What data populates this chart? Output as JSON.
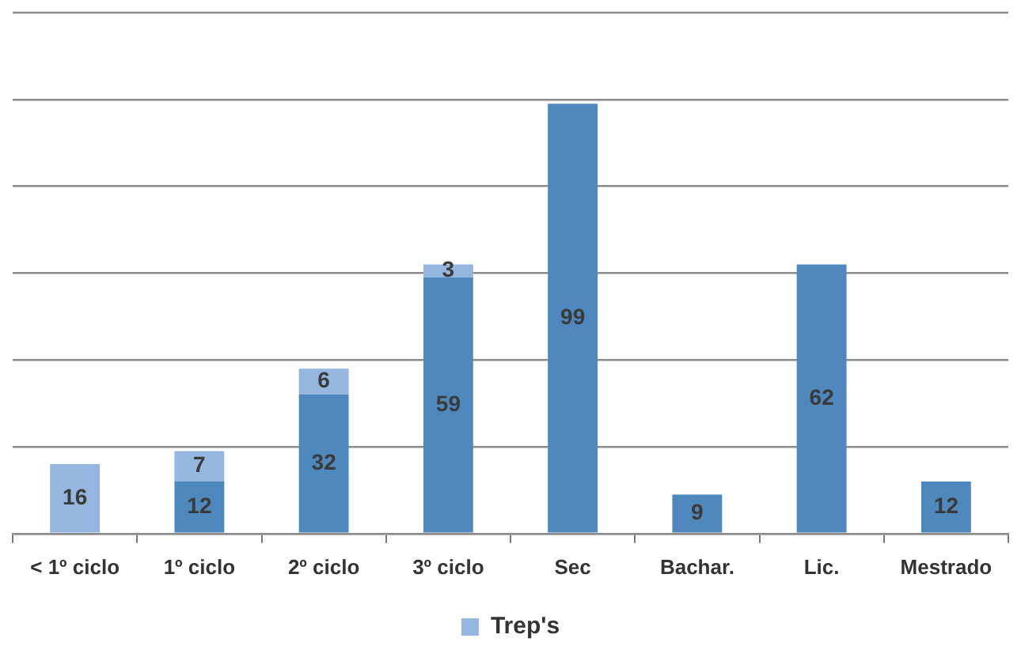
{
  "chart_data": {
    "type": "bar",
    "stacked": true,
    "categories": [
      "< 1º ciclo",
      "1º ciclo",
      "2º ciclo",
      "3º ciclo",
      "Sec",
      "Bachar.",
      "Lic.",
      "Mestrado"
    ],
    "series": [
      {
        "color": "#4f88bd",
        "values": [
          null,
          12,
          32,
          59,
          99,
          9,
          62,
          12
        ]
      },
      {
        "name": "Trep's",
        "color": "#95b6df",
        "values": [
          16,
          7,
          6,
          3,
          null,
          null,
          null,
          null
        ]
      }
    ],
    "ylim": [
      0,
      120
    ],
    "yticks": [
      {
        "value": 0,
        "label": null
      },
      {
        "value": 20,
        "label": null
      },
      {
        "value": 40,
        "label": null
      },
      {
        "value": 60,
        "label": null
      },
      {
        "value": 80,
        "label": null
      },
      {
        "value": 100,
        "label": null
      }
    ],
    "tick_labels": "x",
    "grid": "y",
    "legend": "bottom",
    "data_labels": true
  }
}
